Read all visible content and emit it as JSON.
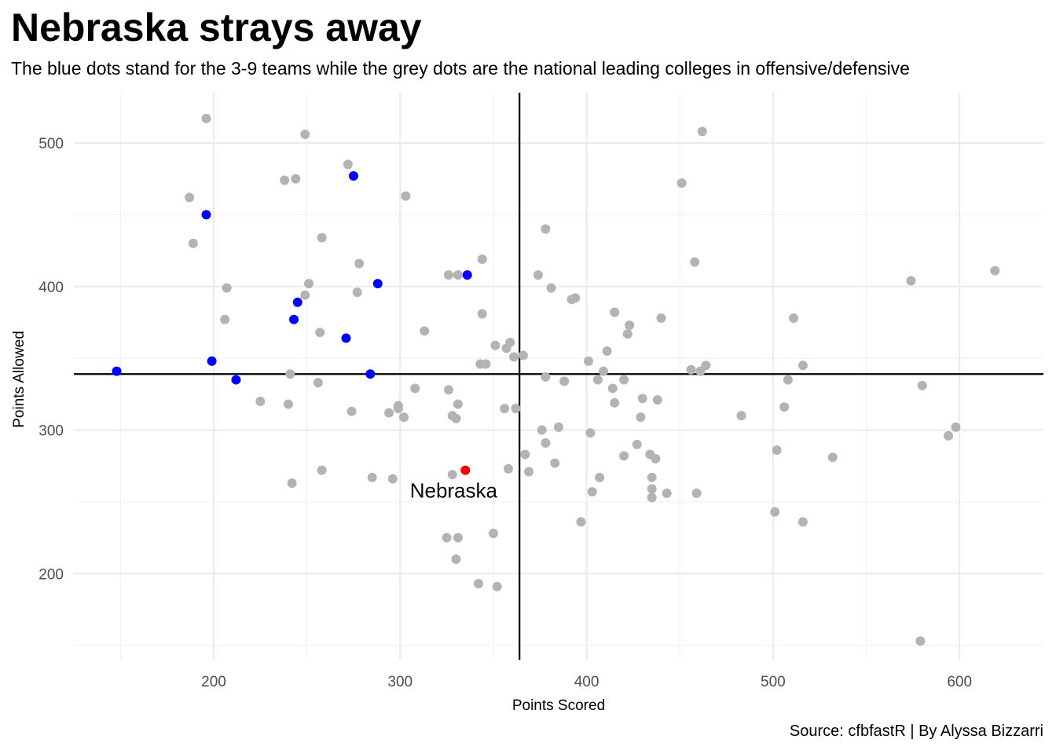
{
  "chart_data": {
    "type": "scatter",
    "title": "Nebraska strays away",
    "subtitle": "The blue dots stand for the 3-9 teams while the grey dots are the national leading colleges in offensive/defensive",
    "caption": "Source: cfbfastR | By Alyssa Bizzarri",
    "xlabel": "Points Scored",
    "ylabel": "Points Allowed",
    "xlim": [
      125,
      645
    ],
    "ylim": [
      140,
      535
    ],
    "xticks": [
      200,
      300,
      400,
      500,
      600
    ],
    "yticks": [
      200,
      300,
      400,
      500
    ],
    "grid": true,
    "reference_lines": {
      "x": 364,
      "y": 339
    },
    "annotation": {
      "text": "Nebraska",
      "x": 335,
      "y": 258
    },
    "colors": {
      "grey": "#b3b3b3",
      "blue": "#0000ff",
      "red": "#ff0000"
    },
    "series": [
      {
        "color": "grey",
        "points": [
          [
            196,
            517
          ],
          [
            249,
            506
          ],
          [
            462,
            508
          ],
          [
            272,
            485
          ],
          [
            238,
            474
          ],
          [
            244,
            475
          ],
          [
            187,
            462
          ],
          [
            303,
            463
          ],
          [
            451,
            472
          ],
          [
            378,
            440
          ],
          [
            258,
            434
          ],
          [
            189,
            430
          ],
          [
            278,
            416
          ],
          [
            344,
            419
          ],
          [
            458,
            417
          ],
          [
            326,
            408
          ],
          [
            331,
            408
          ],
          [
            374,
            408
          ],
          [
            251,
            402
          ],
          [
            207,
            399
          ],
          [
            381,
            399
          ],
          [
            277,
            396
          ],
          [
            249,
            394
          ],
          [
            394,
            392
          ],
          [
            392,
            391
          ],
          [
            206,
            377
          ],
          [
            344,
            381
          ],
          [
            415,
            382
          ],
          [
            440,
            378
          ],
          [
            574,
            404
          ],
          [
            619,
            411
          ],
          [
            511,
            378
          ],
          [
            257,
            368
          ],
          [
            313,
            369
          ],
          [
            423,
            373
          ],
          [
            422,
            367
          ],
          [
            351,
            359
          ],
          [
            357,
            357
          ],
          [
            359,
            361
          ],
          [
            361,
            351
          ],
          [
            366,
            352
          ],
          [
            411,
            355
          ],
          [
            401,
            348
          ],
          [
            343,
            346
          ],
          [
            346,
            346
          ],
          [
            456,
            342
          ],
          [
            461,
            341
          ],
          [
            464,
            345
          ],
          [
            516,
            345
          ],
          [
            409,
            341
          ],
          [
            241,
            339
          ],
          [
            378,
            337
          ],
          [
            256,
            333
          ],
          [
            388,
            334
          ],
          [
            406,
            335
          ],
          [
            420,
            335
          ],
          [
            508,
            335
          ],
          [
            580,
            331
          ],
          [
            225,
            320
          ],
          [
            240,
            318
          ],
          [
            308,
            329
          ],
          [
            326,
            328
          ],
          [
            414,
            329
          ],
          [
            274,
            313
          ],
          [
            294,
            312
          ],
          [
            299,
            317
          ],
          [
            299,
            315
          ],
          [
            331,
            318
          ],
          [
            356,
            315
          ],
          [
            362,
            315
          ],
          [
            415,
            319
          ],
          [
            430,
            322
          ],
          [
            438,
            321
          ],
          [
            506,
            316
          ],
          [
            302,
            309
          ],
          [
            328,
            310
          ],
          [
            330,
            308
          ],
          [
            429,
            309
          ],
          [
            483,
            310
          ],
          [
            376,
            300
          ],
          [
            385,
            302
          ],
          [
            378,
            291
          ],
          [
            402,
            298
          ],
          [
            598,
            302
          ],
          [
            594,
            296
          ],
          [
            427,
            290
          ],
          [
            367,
            283
          ],
          [
            420,
            282
          ],
          [
            434,
            283
          ],
          [
            437,
            280
          ],
          [
            502,
            286
          ],
          [
            532,
            281
          ],
          [
            258,
            272
          ],
          [
            285,
            267
          ],
          [
            296,
            266
          ],
          [
            328,
            269
          ],
          [
            358,
            273
          ],
          [
            369,
            271
          ],
          [
            383,
            277
          ],
          [
            407,
            267
          ],
          [
            435,
            267
          ],
          [
            242,
            263
          ],
          [
            403,
            257
          ],
          [
            435,
            259
          ],
          [
            435,
            253
          ],
          [
            443,
            256
          ],
          [
            459,
            256
          ],
          [
            501,
            243
          ],
          [
            516,
            236
          ],
          [
            397,
            236
          ],
          [
            325,
            225
          ],
          [
            331,
            225
          ],
          [
            350,
            228
          ],
          [
            330,
            210
          ],
          [
            342,
            193
          ],
          [
            352,
            191
          ],
          [
            579,
            153
          ]
        ]
      },
      {
        "color": "blue",
        "points": [
          [
            275,
            477
          ],
          [
            196,
            450
          ],
          [
            336,
            408
          ],
          [
            288,
            402
          ],
          [
            245,
            389
          ],
          [
            243,
            377
          ],
          [
            271,
            364
          ],
          [
            148,
            341
          ],
          [
            199,
            348
          ],
          [
            212,
            335
          ],
          [
            284,
            339
          ]
        ]
      },
      {
        "color": "red",
        "label": "Nebraska",
        "points": [
          [
            335,
            272
          ]
        ]
      }
    ]
  }
}
